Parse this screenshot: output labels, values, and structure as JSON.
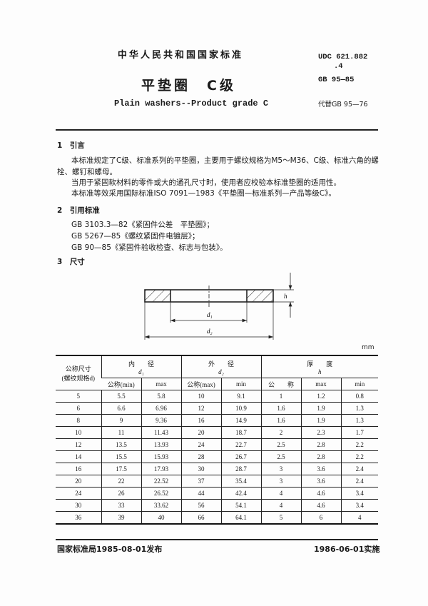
{
  "header": {
    "org": "中华人民共和国国家标准",
    "title": "平垫圈　C级",
    "title_en": "Plain washers--Product grade C",
    "udc": "UDC 621.882",
    "udc2": ".4",
    "code": "GB 95—85",
    "replaces": "代替GB 95—76"
  },
  "sections": [
    {
      "num": "1",
      "title": "引言",
      "paras": [
        "本标准规定了C级、标准系列的平垫圈，主要用于螺纹规格为M5～M36、C级、标准六角的螺",
        "栓、螺钉和螺母。",
        "当用于紧固软材料的零件或大的通孔尺寸时，使用者应校验本标准垫圈的适用性。",
        "本标准等效采用国际标准ISO 7091—1983《平垫圈—标准系列—产品等级C》。"
      ]
    },
    {
      "num": "2",
      "title": "引用标准",
      "paras": [
        "GB 3103.3—82《紧固件公差　平垫圈》；",
        "GB 5267—85《螺纹紧固件电镀层》；",
        "GB 90—85《紧固件验收检查、标志与包装》。"
      ]
    },
    {
      "num": "3",
      "title": "尺寸"
    }
  ],
  "diagram": {
    "d1": "d₁",
    "d2": "d₂",
    "h": "h"
  },
  "table": {
    "unit": "mm",
    "col0": "公称尺寸",
    "col0b": "(螺纹规格d)",
    "groups": [
      {
        "name": "内　　径",
        "sym": "d₁"
      },
      {
        "name": "外　　径",
        "sym": "d₂"
      },
      {
        "name": "厚　　度",
        "sym": "h"
      }
    ],
    "sub": [
      "公称(min)",
      "max",
      "公称(max)",
      "min",
      "公　　称",
      "max",
      "min"
    ],
    "rows": [
      [
        "5",
        "5.5",
        "5.8",
        "10",
        "9.1",
        "1",
        "1.2",
        "0.8"
      ],
      [
        "6",
        "6.6",
        "6.96",
        "12",
        "10.9",
        "1.6",
        "1.9",
        "1.3"
      ],
      [
        "8",
        "9",
        "9.36",
        "16",
        "14.9",
        "1.6",
        "1.9",
        "1.3"
      ],
      [
        "10",
        "11",
        "11.43",
        "20",
        "18.7",
        "2",
        "2.3",
        "1.7"
      ],
      [
        "12",
        "13.5",
        "13.93",
        "24",
        "22.7",
        "2.5",
        "2.8",
        "2.2"
      ],
      [
        "14",
        "15.5",
        "15.93",
        "28",
        "26.7",
        "2.5",
        "2.8",
        "2.2"
      ],
      [
        "16",
        "17.5",
        "17.93",
        "30",
        "28.7",
        "3",
        "3.6",
        "2.4"
      ],
      [
        "20",
        "22",
        "22.52",
        "37",
        "35.4",
        "3",
        "3.6",
        "2.4"
      ],
      [
        "24",
        "26",
        "26.52",
        "44",
        "42.4",
        "4",
        "4.6",
        "3.4"
      ],
      [
        "30",
        "33",
        "33.62",
        "56",
        "54.1",
        "4",
        "4.6",
        "3.4"
      ],
      [
        "36",
        "39",
        "40",
        "66",
        "64.1",
        "5",
        "6",
        "4"
      ]
    ]
  },
  "footer": {
    "issued": "国家标准局1985-08-01发布",
    "effective": "1986-06-01实施"
  }
}
